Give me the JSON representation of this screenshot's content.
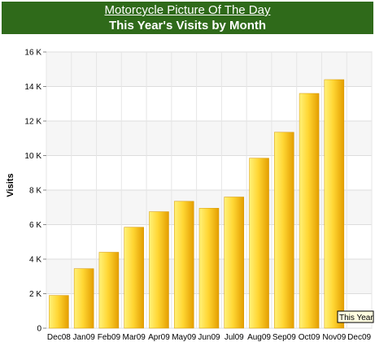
{
  "header": {
    "link_title": "Motorcycle Picture Of The Day",
    "subtitle": "This Year's Visits by Month"
  },
  "colors": {
    "banner": "#2f6a1a",
    "bar_light": "#ffe766",
    "bar_dark": "#e8a200"
  },
  "tooltip": {
    "text": "This Year"
  },
  "chart_data": {
    "type": "bar",
    "title": "This Year's Visits by Month",
    "xlabel": "",
    "ylabel": "Visits",
    "categories": [
      "Dec08",
      "Jan09",
      "Feb09",
      "Mar09",
      "Apr09",
      "May09",
      "Jun09",
      "Jul09",
      "Aug09",
      "Sep09",
      "Oct09",
      "Nov09",
      "Dec09"
    ],
    "series": [
      {
        "name": "This Year",
        "values": [
          1900,
          3450,
          4400,
          5850,
          6750,
          7350,
          6950,
          7600,
          9850,
          11350,
          13600,
          14400,
          0
        ]
      }
    ],
    "ylim": [
      0,
      16000
    ],
    "yticks": [
      0,
      2000,
      4000,
      6000,
      8000,
      10000,
      12000,
      14000,
      16000
    ],
    "ytick_labels": [
      "0",
      "2 K",
      "4 K",
      "6 K",
      "8 K",
      "10 K",
      "12 K",
      "14 K",
      "16 K"
    ],
    "grid": true
  }
}
